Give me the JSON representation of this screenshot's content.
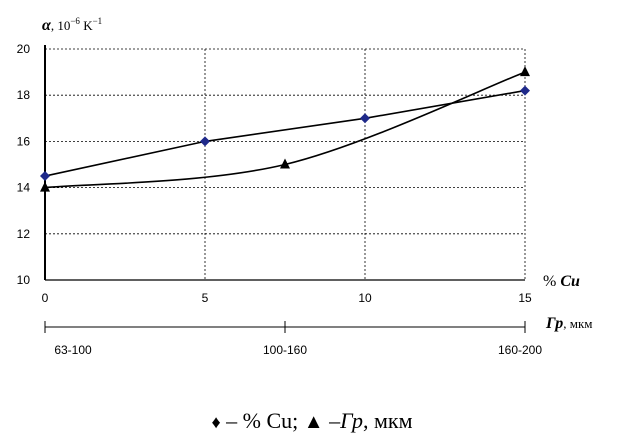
{
  "chart_data": {
    "type": "line",
    "ylabel": {
      "symbol": "α",
      "unit_prefix": ", 10",
      "unit_exp": "−6",
      "unit_main": " K",
      "unit_exp2": "−1"
    },
    "xlabel_primary": {
      "prefix": "% ",
      "symbol": "Cu"
    },
    "xlabel_secondary": {
      "symbol": "Гр",
      "unit": ", мкм"
    },
    "xlim": [
      0,
      15
    ],
    "ylim": [
      10,
      20
    ],
    "x_ticks": [
      "0",
      "5",
      "10",
      "15"
    ],
    "y_ticks": [
      "10",
      "12",
      "14",
      "16",
      "18",
      "20"
    ],
    "secondary_ticks": [
      "63-100",
      "100-160",
      "160-200"
    ],
    "grid": true,
    "series": [
      {
        "marker": "diamond",
        "color": "#1f2a8a",
        "points": [
          {
            "x": 0,
            "y": 14.5
          },
          {
            "x": 5,
            "y": 16
          },
          {
            "x": 10,
            "y": 17
          },
          {
            "x": 15,
            "y": 18.2
          }
        ]
      },
      {
        "marker": "triangle",
        "color": "#000000",
        "points": [
          {
            "x": 0,
            "y": 14
          },
          {
            "x": 7.5,
            "y": 15
          },
          {
            "x": 15,
            "y": 19
          }
        ]
      }
    ],
    "legend": {
      "diamond_glyph": "♦",
      "diamond_text": " – % Cu; ",
      "triangle_glyph": "▲",
      "triangle_text_prefix": " –",
      "triangle_symbol": "Гр",
      "triangle_unit": ", мкм"
    }
  }
}
